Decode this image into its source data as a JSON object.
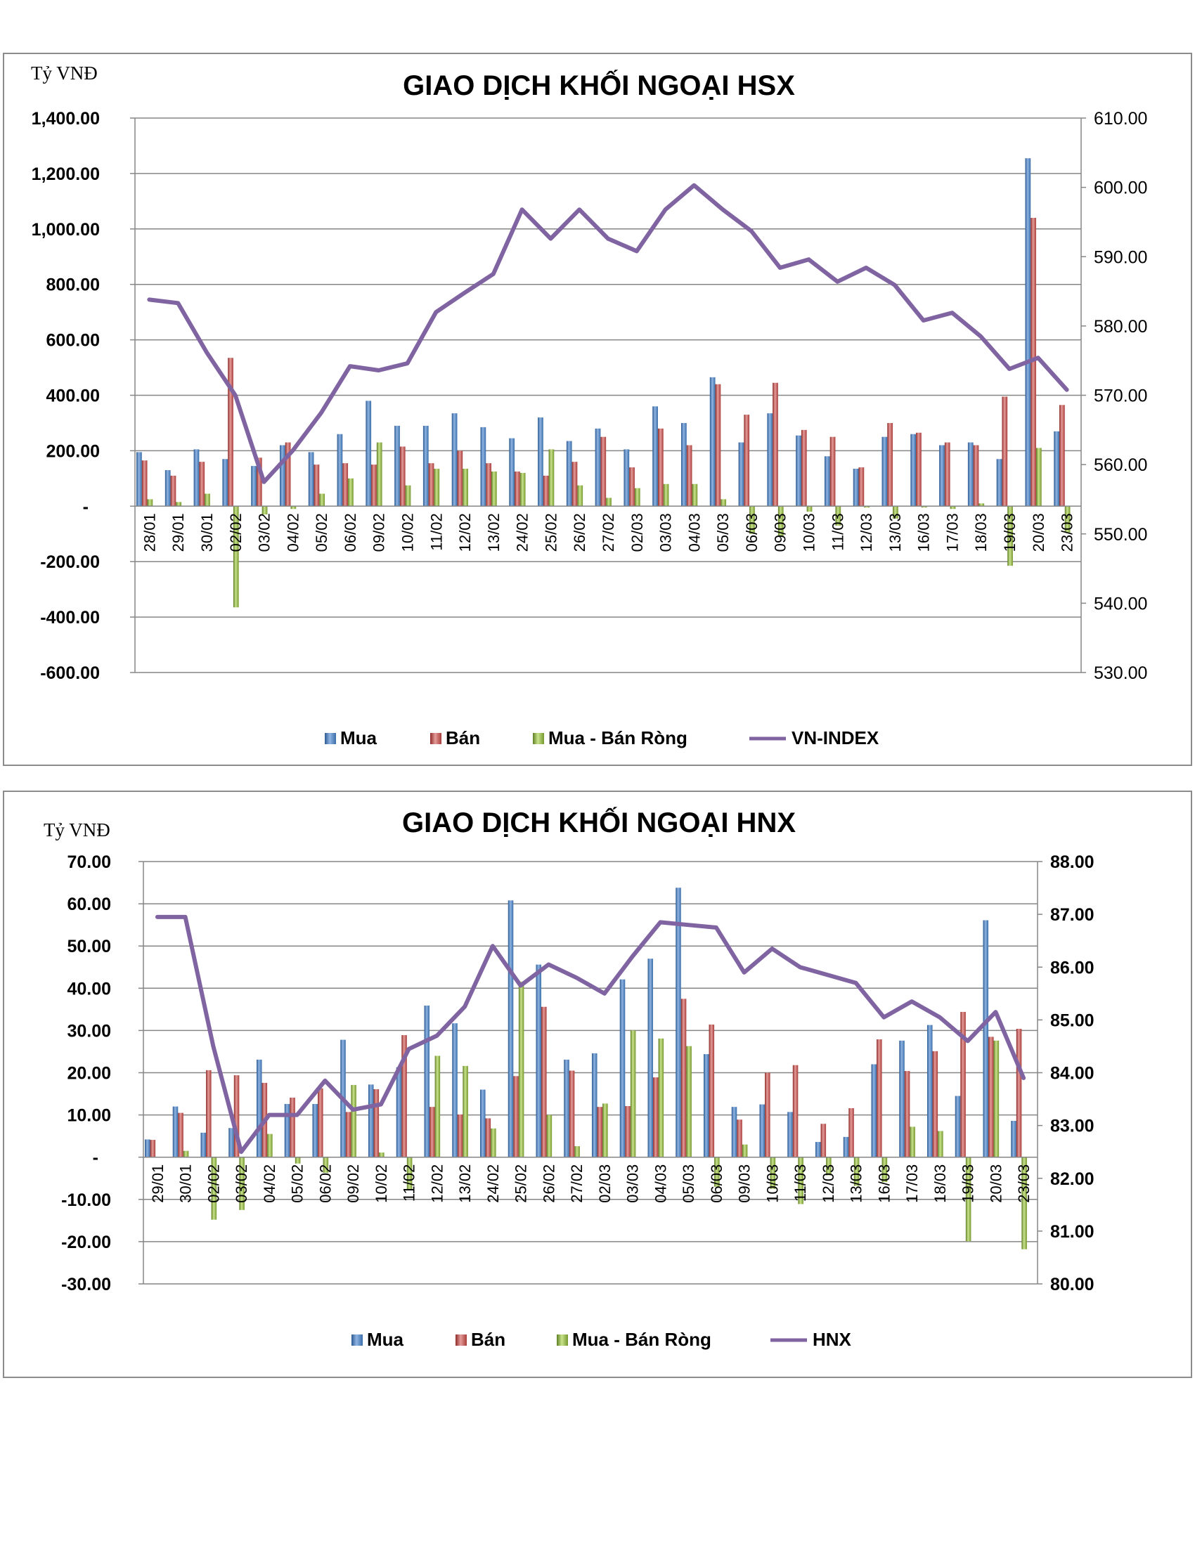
{
  "colors": {
    "buy": "#4a7ebb",
    "sell": "#c0504d",
    "net": "#8fb347",
    "index": "#8064a2",
    "grid": "#868686"
  },
  "chart_data": [
    {
      "type": "bar",
      "title": "GIAO DỊCH KHỐI NGOẠI HSX",
      "ylabel": "Tỷ VNĐ",
      "ylim": [
        -600,
        1400
      ],
      "y2lim": [
        530,
        610
      ],
      "yticks": [
        "1,400.00",
        "1,200.00",
        "1,000.00",
        "800.00",
        "600.00",
        "400.00",
        "200.00",
        "-",
        "-200.00",
        "-400.00",
        "-600.00"
      ],
      "y2ticks": [
        "610.00",
        "600.00",
        "590.00",
        "580.00",
        "570.00",
        "560.00",
        "550.00",
        "540.00",
        "530.00"
      ],
      "legend_position": "bottom",
      "grid": true,
      "categories": [
        "28/01",
        "29/01",
        "30/01",
        "02/02",
        "03/02",
        "04/02",
        "05/02",
        "06/02",
        "09/02",
        "10/02",
        "11/02",
        "12/02",
        "13/02",
        "24/02",
        "25/02",
        "26/02",
        "27/02",
        "02/03",
        "03/03",
        "04/03",
        "05/03",
        "06/03",
        "09/03",
        "10/03",
        "11/03",
        "12/03",
        "13/03",
        "16/03",
        "17/03",
        "18/03",
        "19/03",
        "20/03",
        "23/03"
      ],
      "series": [
        {
          "name": "Mua",
          "kind": "bar",
          "axis": "left",
          "values": [
            195,
            130,
            205,
            170,
            145,
            220,
            195,
            260,
            380,
            290,
            290,
            335,
            285,
            245,
            320,
            235,
            280,
            205,
            360,
            300,
            465,
            230,
            335,
            255,
            180,
            135,
            250,
            260,
            220,
            230,
            170,
            1255,
            270
          ]
        },
        {
          "name": "Bán",
          "kind": "bar",
          "axis": "left",
          "values": [
            165,
            110,
            160,
            535,
            175,
            230,
            150,
            155,
            150,
            215,
            155,
            200,
            155,
            125,
            110,
            160,
            250,
            140,
            280,
            220,
            440,
            330,
            445,
            275,
            250,
            140,
            300,
            265,
            230,
            220,
            395,
            1040,
            365
          ]
        },
        {
          "name": "Mua - Bán Ròng",
          "kind": "bar",
          "axis": "left",
          "values": [
            25,
            15,
            45,
            -365,
            -30,
            -10,
            45,
            100,
            230,
            75,
            135,
            135,
            125,
            120,
            205,
            75,
            30,
            65,
            80,
            80,
            25,
            -100,
            -110,
            -20,
            -70,
            -5,
            -45,
            -5,
            -10,
            10,
            -215,
            210,
            -95
          ]
        },
        {
          "name": "VN-INDEX",
          "kind": "line",
          "axis": "right",
          "values": [
            583.8,
            583.3,
            576.2,
            570.0,
            557.5,
            562.0,
            567.5,
            574.2,
            573.6,
            574.6,
            582.0,
            584.8,
            587.5,
            596.8,
            592.6,
            596.8,
            592.6,
            590.8,
            596.8,
            600.3,
            596.8,
            593.7,
            588.4,
            589.6,
            586.4,
            588.4,
            585.9,
            580.8,
            581.9,
            578.5,
            573.8,
            575.4,
            570.8
          ]
        }
      ]
    },
    {
      "type": "bar",
      "title": "GIAO DỊCH KHỐI NGOẠI HNX",
      "ylabel": "Tỷ VNĐ",
      "ylim": [
        -30,
        70
      ],
      "y2lim": [
        80,
        88
      ],
      "yticks": [
        "70.00",
        "60.00",
        "50.00",
        "40.00",
        "30.00",
        "20.00",
        "10.00",
        "-",
        "-10.00",
        "-20.00",
        "-30.00"
      ],
      "y2ticks": [
        "88.00",
        "87.00",
        "86.00",
        "85.00",
        "84.00",
        "83.00",
        "82.00",
        "81.00",
        "80.00"
      ],
      "legend_position": "bottom",
      "grid": true,
      "categories": [
        "29/01",
        "30/01",
        "02/02",
        "03/02",
        "04/02",
        "05/02",
        "06/02",
        "09/02",
        "10/02",
        "11/02",
        "12/02",
        "13/02",
        "24/02",
        "25/02",
        "26/02",
        "27/02",
        "02/03",
        "03/03",
        "04/03",
        "05/03",
        "06/03",
        "09/03",
        "10/03",
        "11/03",
        "12/03",
        "13/03",
        "16/03",
        "17/03",
        "18/03",
        "19/03",
        "20/03",
        "23/03"
      ],
      "series": [
        {
          "name": "Mua",
          "kind": "bar",
          "axis": "left",
          "values": [
            4.2,
            12,
            5.8,
            6.9,
            23.1,
            12.6,
            12.6,
            27.8,
            17.2,
            21.3,
            35.9,
            31.7,
            16,
            60.8,
            45.6,
            23.1,
            24.6,
            42.1,
            47,
            63.8,
            24.4,
            11.9,
            12.5,
            10.7,
            3.6,
            4.8,
            22,
            27.6,
            31.3,
            14.5,
            56.1,
            8.6
          ]
        },
        {
          "name": "Bán",
          "kind": "bar",
          "axis": "left",
          "values": [
            4.1,
            10.5,
            20.6,
            19.4,
            17.6,
            14.1,
            16.3,
            10.7,
            16.1,
            28.9,
            11.9,
            10.1,
            9.2,
            19.2,
            35.6,
            20.5,
            11.9,
            12.1,
            18.9,
            37.5,
            31.4,
            8.9,
            20,
            21.8,
            7.9,
            11.6,
            27.9,
            20.4,
            25.1,
            34.4,
            28.5,
            30.4
          ]
        },
        {
          "name": "Mua - Bán Ròng",
          "kind": "bar",
          "axis": "left",
          "values": [
            0.1,
            1.5,
            -14.8,
            -12.5,
            5.5,
            -1.5,
            -3.7,
            17.1,
            1.1,
            -7.6,
            24,
            21.6,
            6.8,
            41.6,
            10,
            2.6,
            12.7,
            30,
            28.1,
            26.3,
            -7,
            3,
            -7.5,
            -11.1,
            -4.3,
            -6.8,
            -5.9,
            7.2,
            6.2,
            -19.9,
            27.6,
            -21.8
          ]
        },
        {
          "name": "HNX",
          "kind": "line",
          "axis": "right",
          "values": [
            86.95,
            86.95,
            84.5,
            82.5,
            83.2,
            83.2,
            83.85,
            83.3,
            83.4,
            84.45,
            84.7,
            85.25,
            86.4,
            85.65,
            86.05,
            85.8,
            85.5,
            86.2,
            86.85,
            86.8,
            86.75,
            85.9,
            86.35,
            86,
            85.85,
            85.7,
            85.05,
            85.35,
            85.05,
            84.6,
            85.15,
            83.9
          ]
        }
      ]
    }
  ]
}
